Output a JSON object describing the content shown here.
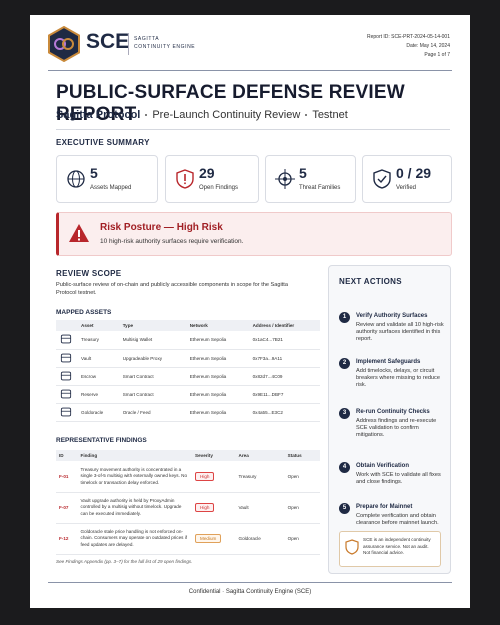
{
  "header": {
    "logo_text": "SCE",
    "brand_line1": "SAGITTA",
    "brand_line2": "CONTINUITY ENGINE",
    "report_id": "Report ID: SCE-PRT-2024-05-14-001",
    "date": "Date: May 14, 2024",
    "page": "Page 1 of 7"
  },
  "title": "PUBLIC-SURFACE DEFENSE REVIEW REPORT",
  "subtitle": {
    "project": "Sagitta Protocol",
    "review": "Pre-Launch Continuity Review",
    "network": "Testnet"
  },
  "executive_summary": {
    "heading": "EXECUTIVE SUMMARY",
    "stats": [
      {
        "value": 5,
        "label": "Assets Mapped"
      },
      {
        "value": 29,
        "label": "Open Findings"
      },
      {
        "value": 5,
        "label": "Threat Families"
      },
      {
        "value": "0 / 29",
        "label": "Verified"
      }
    ]
  },
  "risk": {
    "title": "Risk Posture — High Risk",
    "text": "10 high-risk authority surfaces require verification."
  },
  "review_scope": {
    "heading": "REVIEW SCOPE",
    "text": "Public-surface review of on-chain and publicly accessible components in scope for the Sagitta Protocol testnet."
  },
  "mapped_assets": {
    "heading": "MAPPED ASSETS",
    "columns": [
      "Asset",
      "Type",
      "Network",
      "Address / Identifier"
    ],
    "rows": [
      [
        "Treasury",
        "Multisig Wallet",
        "Ethereum Sepolia",
        "0x1aC4...7B21"
      ],
      [
        "Vault",
        "Upgradeable Proxy",
        "Ethereum Sepolia",
        "0x7F3a...9A11"
      ],
      [
        "Escrow",
        "Smart Contract",
        "Ethereum Sepolia",
        "0x82d7...4C09"
      ],
      [
        "Reserve",
        "Smart Contract",
        "Ethereum Sepolia",
        "0x9E11...DBF7"
      ],
      [
        "Goldoracle",
        "Oracle / Feed",
        "Ethereum Sepolia",
        "0x4a55...E3C2"
      ]
    ]
  },
  "findings": {
    "heading": "REPRESENTATIVE FINDINGS",
    "columns": [
      "ID",
      "Finding",
      "Severity",
      "Area",
      "Status"
    ],
    "rows": [
      [
        "F-01",
        "Treasury movement authority is concentrated in a single 3-of-5 multisig with externally owned keys. No timelock or transaction delay enforced.",
        "High",
        "Treasury",
        "Open"
      ],
      [
        "F-07",
        "Vault upgrade authority is held by ProxyAdmin controlled by a multisig without timelock. Upgrade can be executed immediately.",
        "High",
        "Vault",
        "Open"
      ],
      [
        "F-12",
        "Goldoracle stale price handling is not enforced on-chain. Consumers may operate on outdated prices if feed updates are delayed.",
        "Medium",
        "Goldoracle",
        "Open"
      ]
    ],
    "note": "See Findings Appendix (pp. 3–7) for the full list of 29 open findings."
  },
  "next_actions": {
    "heading": "NEXT ACTIONS",
    "items": [
      {
        "number": 1,
        "title": "Verify Authority Surfaces",
        "text": "Review and validate all 10 high-risk authority surfaces identified in this report."
      },
      {
        "number": 2,
        "title": "Implement Safeguards",
        "text": "Add timelocks, delays, or circuit breakers where missing to reduce risk."
      },
      {
        "number": 3,
        "title": "Re-run Continuity Checks",
        "text": "Address findings and re-execute SCE validation to confirm mitigations."
      },
      {
        "number": 4,
        "title": "Obtain Verification",
        "text": "Work with SCE to validate all fixes and close findings."
      },
      {
        "number": 5,
        "title": "Prepare for Mainnet",
        "text": "Complete verification and obtain clearance before mainnet launch."
      }
    ]
  },
  "disclaimer": "SCE is an independent continuity assurance service. Not an audit. Not financial advice.",
  "footer": "Confidential · Sagitta Continuity Engine (SCE)"
}
